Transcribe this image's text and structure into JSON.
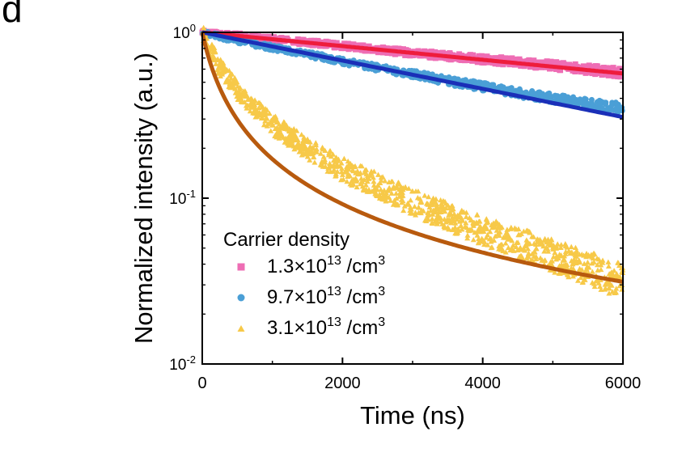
{
  "panel_label": "d",
  "chart_data": {
    "type": "scatter",
    "xlabel": "Time (ns)",
    "ylabel": "Normalized intensity (a.u.)",
    "xlim": [
      0,
      6000
    ],
    "ylim": [
      0.01,
      1
    ],
    "yscale": "log",
    "xticks": [
      0,
      2000,
      4000,
      6000
    ],
    "xtick_labels": [
      "0",
      "2000",
      "4000",
      "6000"
    ],
    "yticks": [
      0.01,
      0.1,
      1
    ],
    "ytick_labels": [
      {
        "base": "10",
        "exp": "-2"
      },
      {
        "base": "10",
        "exp": "-1"
      },
      {
        "base": "10",
        "exp": "0"
      }
    ],
    "grid": false,
    "legend_title": "Carrier density",
    "legend_position": "lower-left",
    "series": [
      {
        "name": "1.3×10¹³ /cm³",
        "label": {
          "mantissa": "1.3×10",
          "exp": "13",
          "unit": " /cm",
          "unit_exp": "3"
        },
        "marker": "square",
        "color": "#ee6db4",
        "fit_color": "#ee1c3c",
        "fit": {
          "model": "exponential",
          "amplitude": 1.0,
          "tau_ns": 10500
        },
        "x": [
          0,
          500,
          1000,
          1500,
          2000,
          2500,
          3000,
          3500,
          4000,
          4500,
          5000,
          5500,
          6000
        ],
        "y": [
          1.0,
          0.96,
          0.91,
          0.87,
          0.83,
          0.79,
          0.75,
          0.72,
          0.69,
          0.66,
          0.63,
          0.6,
          0.57
        ]
      },
      {
        "name": "9.7×10¹³ /cm³",
        "label": {
          "mantissa": "9.7×10",
          "exp": "13",
          "unit": " /cm",
          "unit_exp": "3"
        },
        "marker": "circle",
        "color": "#4a9fd6",
        "fit_color": "#1a2fb8",
        "fit": {
          "model": "exponential",
          "amplitude": 1.0,
          "tau_ns": 5100
        },
        "x": [
          0,
          500,
          1000,
          1500,
          2000,
          2500,
          3000,
          3500,
          4000,
          4500,
          5000,
          5500,
          6000
        ],
        "y": [
          1.0,
          0.89,
          0.81,
          0.74,
          0.67,
          0.61,
          0.56,
          0.51,
          0.47,
          0.43,
          0.4,
          0.37,
          0.35
        ]
      },
      {
        "name": "3.1×10¹³ /cm³",
        "label": {
          "mantissa": "3.1×10",
          "exp": "13",
          "unit": " /cm",
          "unit_exp": "3"
        },
        "marker": "triangle",
        "color": "#f7c948",
        "fit_color": "#b85a0e",
        "fit": {
          "model": "power",
          "amplitude": 1.0,
          "t0_ns": 230,
          "exponent": 1.05
        },
        "x": [
          0,
          250,
          500,
          1000,
          1500,
          2000,
          2500,
          3000,
          3500,
          4000,
          4500,
          5000,
          5500,
          6000
        ],
        "y": [
          1.0,
          0.62,
          0.45,
          0.28,
          0.2,
          0.15,
          0.12,
          0.095,
          0.078,
          0.064,
          0.054,
          0.045,
          0.038,
          0.032
        ]
      }
    ]
  }
}
